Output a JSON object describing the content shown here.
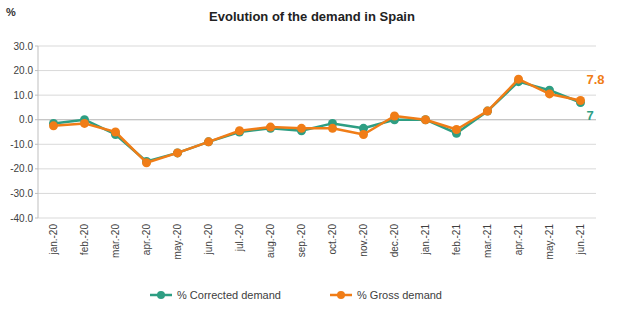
{
  "chart_data": {
    "type": "line",
    "title": "Evolution of the demand in Spain",
    "y_label": "%",
    "categories": [
      "jan.-20",
      "feb.-20",
      "mar.-20",
      "apr.-20",
      "may.-20",
      "jun.-20",
      "jul.-20",
      "aug.-20",
      "sep.-20",
      "oct.-20",
      "nov.-20",
      "dec.-20",
      "jan.-21",
      "feb.-21",
      "mar.-21",
      "apr.-21",
      "may.-21",
      "jun.-21"
    ],
    "series": [
      {
        "name": "% Corrected demand",
        "color": "#2e9e83",
        "marker": "circle",
        "line_style": "solid",
        "values": [
          -1.5,
          0,
          -6,
          -17,
          -13.5,
          -9,
          -5,
          -3.5,
          -4.5,
          -1.5,
          -3.5,
          0,
          0,
          -5.5,
          3.5,
          15.5,
          12,
          7
        ]
      },
      {
        "name": "% Gross demand",
        "color": "#f07d17",
        "marker": "circle",
        "line_style": "solid",
        "values": [
          -2.5,
          -1.5,
          -5,
          -17.5,
          -13.5,
          -9,
          -4.5,
          -3,
          -3.5,
          -3.5,
          -6,
          1.5,
          0,
          -4,
          3.5,
          16.5,
          10.5,
          7.8
        ]
      }
    ],
    "annotations": [
      {
        "text": "7.8",
        "x": "jun.-21",
        "y": 7.8,
        "color": "#f07d17"
      },
      {
        "text": "7",
        "x": "jun.-21",
        "y": 7,
        "color": "#2e9e83"
      }
    ],
    "ylim": [
      -40,
      30
    ],
    "yticks": [
      {
        "value": -40,
        "label": "-40.0"
      },
      {
        "value": -30,
        "label": "-30.0"
      },
      {
        "value": -20,
        "label": "-20.0"
      },
      {
        "value": -10,
        "label": "-10.0"
      },
      {
        "value": 0,
        "label": "0.0"
      },
      {
        "value": 10,
        "label": "10.0"
      },
      {
        "value": 20,
        "label": "20.0"
      },
      {
        "value": 30,
        "label": "30.0"
      }
    ],
    "grid": true,
    "legend": "bottom"
  }
}
